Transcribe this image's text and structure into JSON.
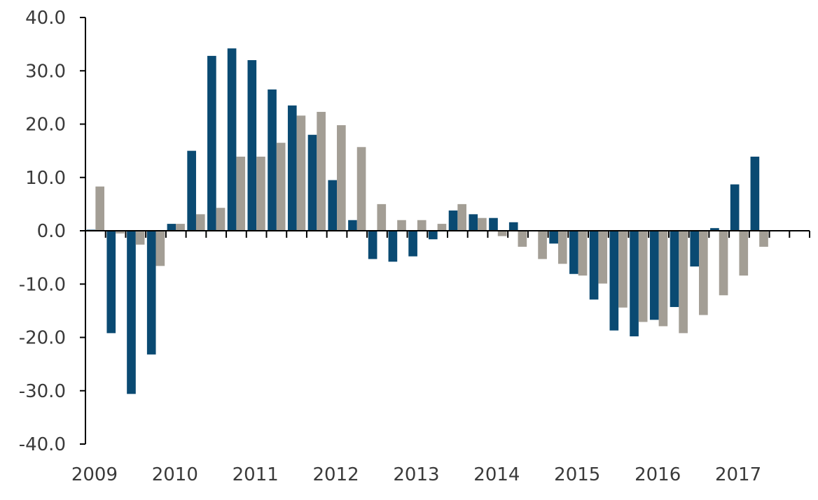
{
  "chart_data": {
    "type": "bar",
    "title": "",
    "xlabel": "",
    "ylabel": "",
    "ylim": [
      -40,
      40
    ],
    "yticks": [
      40,
      30,
      20,
      10,
      0,
      -10,
      -20,
      -30,
      -40
    ],
    "ytick_labels": [
      "40.0",
      "30.0",
      "20.0",
      "10.0",
      "0.0",
      "-10.0",
      "-20.0",
      "-30.0",
      "-40.0"
    ],
    "year_labels": [
      "2009",
      "2010",
      "2011",
      "2012",
      "2013",
      "2014",
      "2015",
      "2016",
      "2017"
    ],
    "quarters_per_year": 4,
    "categories": [
      "2009 Q1",
      "2009 Q2",
      "2009 Q3",
      "2009 Q4",
      "2010 Q1",
      "2010 Q2",
      "2010 Q3",
      "2010 Q4",
      "2011 Q1",
      "2011 Q2",
      "2011 Q3",
      "2011 Q4",
      "2012 Q1",
      "2012 Q2",
      "2012 Q3",
      "2012 Q4",
      "2013 Q1",
      "2013 Q2",
      "2013 Q3",
      "2013 Q4",
      "2014 Q1",
      "2014 Q2",
      "2014 Q3",
      "2014 Q4",
      "2015 Q1",
      "2015 Q2",
      "2015 Q3",
      "2015 Q4",
      "2016 Q1",
      "2016 Q2",
      "2016 Q3",
      "2016 Q4",
      "2017 Q1",
      "2017 Q2",
      "2017 Q3",
      "2017 Q4"
    ],
    "grid": false,
    "legend": "none",
    "series": [
      {
        "color": "#0a4a72",
        "values": [
          0.2,
          -19.2,
          -30.6,
          -23.2,
          1.3,
          15.0,
          32.8,
          34.2,
          32.0,
          26.5,
          23.5,
          18.0,
          9.5,
          2.0,
          -5.3,
          -5.8,
          -4.8,
          -1.6,
          3.8,
          3.1,
          2.4,
          1.6,
          0.1,
          -2.4,
          -8.1,
          -12.9,
          -18.7,
          -19.8,
          -16.7,
          -14.3,
          -6.7,
          0.5,
          8.7,
          13.9,
          null,
          null
        ]
      },
      {
        "color": "#a39e95",
        "values": [
          8.3,
          -0.5,
          -2.6,
          -6.6,
          1.3,
          3.1,
          4.3,
          13.9,
          13.9,
          16.5,
          21.6,
          22.3,
          19.8,
          15.7,
          5.0,
          2.0,
          2.0,
          1.3,
          5.0,
          2.4,
          -1.0,
          -3.0,
          -5.3,
          -6.2,
          -8.4,
          -9.9,
          -14.4,
          -17.1,
          -17.9,
          -19.2,
          -15.8,
          -12.1,
          -8.4,
          -3.0,
          null,
          null
        ]
      }
    ]
  }
}
